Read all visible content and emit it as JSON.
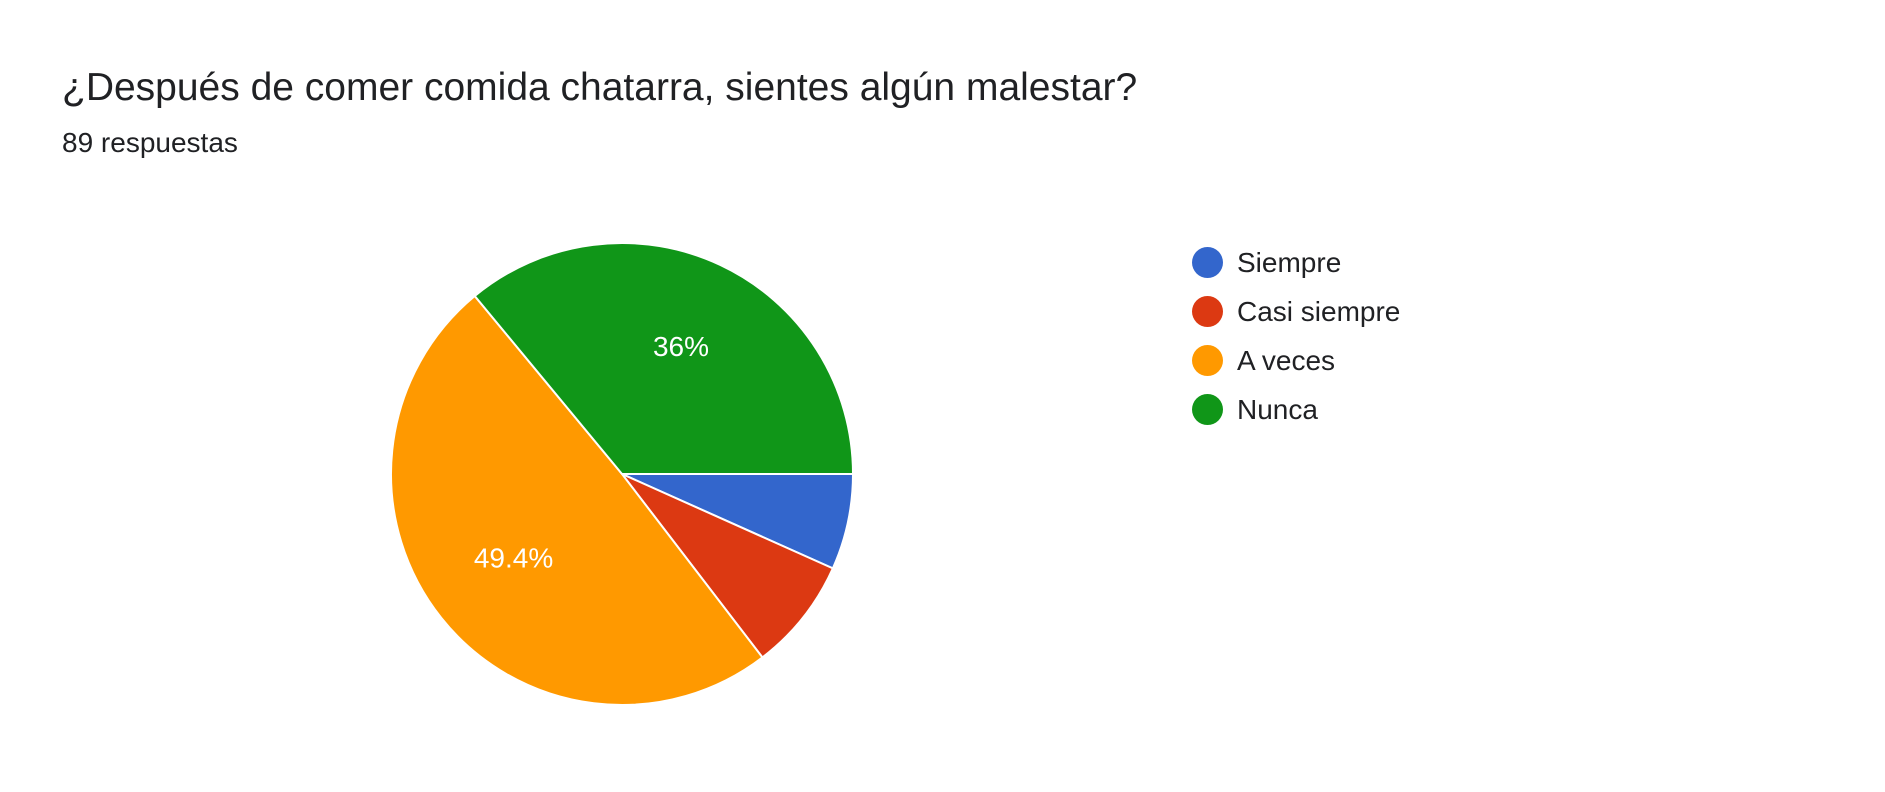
{
  "chart_data": {
    "type": "pie",
    "title": "¿Después de comer comida chatarra, sientes algún malestar?",
    "subtitle": "89 respuestas",
    "categories": [
      "Siempre",
      "Casi siempre",
      "A veces",
      "Nunca"
    ],
    "values": [
      6.7,
      7.9,
      49.4,
      36
    ],
    "value_labels": [
      "",
      "",
      "49.4%",
      "36%"
    ],
    "colors": [
      "#3366cc",
      "#dc3912",
      "#ff9900",
      "#109618"
    ],
    "legend_position": "right"
  }
}
